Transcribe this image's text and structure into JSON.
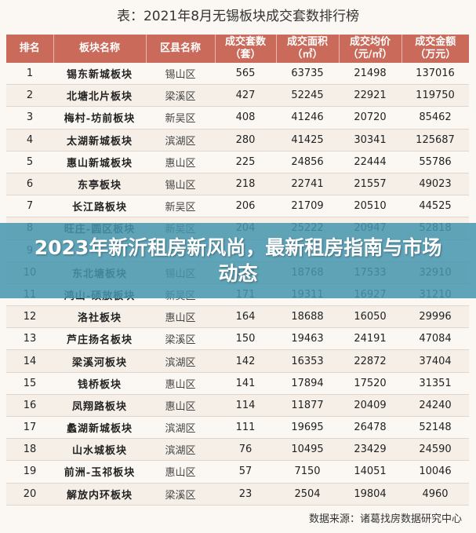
{
  "title": "表：2021年8月无锡板块成交套数排行榜",
  "headers": [
    "排名",
    "板块名称",
    "区县名称",
    "成交套数\n（套）",
    "成交面积\n（㎡）",
    "成交均价\n（元/㎡）",
    "成交金额\n（万元）"
  ],
  "rows": [
    [
      "1",
      "锡东新城板块",
      "锡山区",
      "565",
      "63735",
      "21498",
      "137016"
    ],
    [
      "2",
      "北塘北片板块",
      "梁溪区",
      "427",
      "52245",
      "22921",
      "119750"
    ],
    [
      "3",
      "梅村-坊前板块",
      "新吴区",
      "408",
      "41246",
      "20720",
      "85462"
    ],
    [
      "4",
      "太湖新城板块",
      "滨湖区",
      "280",
      "41425",
      "30341",
      "125687"
    ],
    [
      "5",
      "惠山新城板块",
      "惠山区",
      "225",
      "24856",
      "22444",
      "55786"
    ],
    [
      "6",
      "东亭板块",
      "锡山区",
      "218",
      "22741",
      "21557",
      "49023"
    ],
    [
      "7",
      "长江路板块",
      "新吴区",
      "206",
      "21709",
      "20510",
      "44525"
    ],
    [
      "8",
      "旺庄-圆区板块",
      "新吴区",
      "204",
      "25222",
      "20947",
      "52818"
    ],
    [
      "9",
      "",
      "",
      "",
      "",
      "",
      ""
    ],
    [
      "10",
      "东北塘板块",
      "锡山区",
      "187",
      "18768",
      "17533",
      "32910"
    ],
    [
      "11",
      "鸿山-硕放板块",
      "新吴区",
      "171",
      "19311",
      "16927",
      "31210"
    ],
    [
      "12",
      "洛社板块",
      "惠山区",
      "164",
      "18688",
      "16050",
      "29996"
    ],
    [
      "13",
      "芦庄扬名板块",
      "梁溪区",
      "150",
      "19463",
      "24191",
      "47084"
    ],
    [
      "14",
      "梁溪河板块",
      "滨湖区",
      "142",
      "16353",
      "22872",
      "37404"
    ],
    [
      "15",
      "钱桥板块",
      "惠山区",
      "141",
      "17894",
      "17520",
      "31351"
    ],
    [
      "16",
      "凤翔路板块",
      "惠山区",
      "114",
      "11877",
      "20409",
      "24240"
    ],
    [
      "17",
      "蠡湖新城板块",
      "滨湖区",
      "111",
      "19695",
      "26478",
      "52148"
    ],
    [
      "18",
      "山水城板块",
      "滨湖区",
      "76",
      "10495",
      "23429",
      "24590"
    ],
    [
      "19",
      "前洲-玉祁板块",
      "惠山区",
      "57",
      "7150",
      "14051",
      "10046"
    ],
    [
      "20",
      "解放内环板块",
      "梁溪区",
      "23",
      "2504",
      "19804",
      "4960"
    ]
  ],
  "banner": "2023年新沂租房新风尚，最新租房指南与市场动态",
  "source": "数据来源：诸葛找房数据研究中心",
  "colors": {
    "header_bg": "#c96a5a",
    "banner_bg": "#4696af"
  }
}
